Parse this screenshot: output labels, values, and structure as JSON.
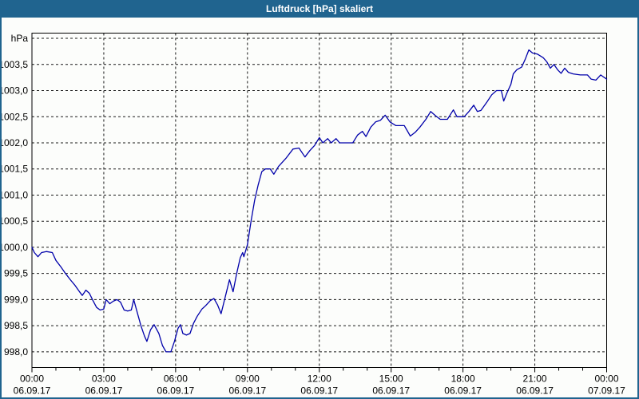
{
  "window": {
    "title": "Luftdruck [hPa] skaliert",
    "titlebar_color": "#20648f",
    "background_color": "#fcfdfb",
    "frame_color": "#20648f"
  },
  "chart_data": {
    "type": "line",
    "title": "Luftdruck [hPa] skaliert",
    "ylabel": "hPa",
    "xlabel": "",
    "line_color": "#0000aa",
    "grid_color": "#1a1a1a",
    "text_color": "#000000",
    "legend": "none",
    "grid": "dashed",
    "xlim_hours": [
      0,
      24
    ],
    "ylim": [
      997.7,
      1004.1
    ],
    "x_major_ticks": [
      {
        "hour": 0,
        "time": "00:00",
        "date": "06.09.17"
      },
      {
        "hour": 3,
        "time": "03:00",
        "date": "06.09.17"
      },
      {
        "hour": 6,
        "time": "06:00",
        "date": "06.09.17"
      },
      {
        "hour": 9,
        "time": "09:00",
        "date": "06.09.17"
      },
      {
        "hour": 12,
        "time": "12:00",
        "date": "06.09.17"
      },
      {
        "hour": 15,
        "time": "15:00",
        "date": "06.09.17"
      },
      {
        "hour": 18,
        "time": "18:00",
        "date": "06.09.17"
      },
      {
        "hour": 21,
        "time": "21:00",
        "date": "06.09.17"
      },
      {
        "hour": 24,
        "time": "00:00",
        "date": "07.09.17"
      }
    ],
    "x_minor_every_hours": 1,
    "y_ticks": [
      {
        "value": 1004.0,
        "label": "hPa"
      },
      {
        "value": 1003.5,
        "label": "1003,5"
      },
      {
        "value": 1003.0,
        "label": "1003,0"
      },
      {
        "value": 1002.5,
        "label": "1002,5"
      },
      {
        "value": 1002.0,
        "label": "1002,0"
      },
      {
        "value": 1001.5,
        "label": "1001,5"
      },
      {
        "value": 1001.0,
        "label": "1001,0"
      },
      {
        "value": 1000.5,
        "label": "1000,5"
      },
      {
        "value": 1000.0,
        "label": "1000,0"
      },
      {
        "value": 999.5,
        "label": "999,5"
      },
      {
        "value": 999.0,
        "label": "999,0"
      },
      {
        "value": 998.5,
        "label": "998,5"
      },
      {
        "value": 998.0,
        "label": "998,0"
      }
    ],
    "series": [
      {
        "name": "Luftdruck",
        "points": [
          [
            0.0,
            1000.0
          ],
          [
            0.1,
            999.9
          ],
          [
            0.25,
            999.82
          ],
          [
            0.4,
            999.9
          ],
          [
            0.6,
            999.92
          ],
          [
            0.85,
            999.9
          ],
          [
            1.0,
            999.75
          ],
          [
            1.2,
            999.63
          ],
          [
            1.4,
            999.5
          ],
          [
            1.6,
            999.38
          ],
          [
            1.8,
            999.27
          ],
          [
            2.0,
            999.14
          ],
          [
            2.1,
            999.08
          ],
          [
            2.25,
            999.18
          ],
          [
            2.4,
            999.12
          ],
          [
            2.55,
            998.98
          ],
          [
            2.7,
            998.85
          ],
          [
            2.85,
            998.8
          ],
          [
            3.0,
            998.82
          ],
          [
            3.1,
            999.0
          ],
          [
            3.25,
            998.92
          ],
          [
            3.4,
            998.97
          ],
          [
            3.55,
            999.0
          ],
          [
            3.7,
            998.95
          ],
          [
            3.85,
            998.8
          ],
          [
            4.0,
            998.78
          ],
          [
            4.15,
            998.8
          ],
          [
            4.25,
            999.0
          ],
          [
            4.4,
            998.75
          ],
          [
            4.55,
            998.5
          ],
          [
            4.7,
            998.3
          ],
          [
            4.8,
            998.2
          ],
          [
            4.95,
            998.42
          ],
          [
            5.1,
            998.52
          ],
          [
            5.3,
            998.35
          ],
          [
            5.45,
            998.12
          ],
          [
            5.6,
            998.0
          ],
          [
            5.8,
            998.0
          ],
          [
            5.95,
            998.2
          ],
          [
            6.1,
            998.45
          ],
          [
            6.2,
            998.52
          ],
          [
            6.3,
            998.35
          ],
          [
            6.45,
            998.32
          ],
          [
            6.6,
            998.35
          ],
          [
            6.75,
            998.55
          ],
          [
            6.9,
            998.68
          ],
          [
            7.1,
            998.82
          ],
          [
            7.25,
            998.88
          ],
          [
            7.45,
            998.98
          ],
          [
            7.6,
            999.02
          ],
          [
            7.75,
            998.9
          ],
          [
            7.9,
            998.73
          ],
          [
            8.1,
            999.1
          ],
          [
            8.25,
            999.38
          ],
          [
            8.4,
            999.15
          ],
          [
            8.55,
            999.5
          ],
          [
            8.7,
            999.8
          ],
          [
            8.8,
            999.9
          ],
          [
            8.85,
            999.82
          ],
          [
            9.0,
            1000.05
          ],
          [
            9.15,
            1000.5
          ],
          [
            9.3,
            1000.9
          ],
          [
            9.45,
            1001.2
          ],
          [
            9.6,
            1001.45
          ],
          [
            9.75,
            1001.5
          ],
          [
            9.95,
            1001.5
          ],
          [
            10.1,
            1001.4
          ],
          [
            10.3,
            1001.55
          ],
          [
            10.6,
            1001.7
          ],
          [
            10.9,
            1001.88
          ],
          [
            11.15,
            1001.9
          ],
          [
            11.4,
            1001.73
          ],
          [
            11.6,
            1001.85
          ],
          [
            11.8,
            1001.95
          ],
          [
            12.0,
            1002.1
          ],
          [
            12.15,
            1002.0
          ],
          [
            12.35,
            1002.08
          ],
          [
            12.5,
            1002.0
          ],
          [
            12.7,
            1002.08
          ],
          [
            12.85,
            1002.0
          ],
          [
            13.1,
            1002.0
          ],
          [
            13.4,
            1002.0
          ],
          [
            13.6,
            1002.15
          ],
          [
            13.8,
            1002.22
          ],
          [
            13.95,
            1002.12
          ],
          [
            14.15,
            1002.3
          ],
          [
            14.35,
            1002.4
          ],
          [
            14.55,
            1002.43
          ],
          [
            14.75,
            1002.53
          ],
          [
            14.95,
            1002.4
          ],
          [
            15.2,
            1002.33
          ],
          [
            15.55,
            1002.33
          ],
          [
            15.8,
            1002.13
          ],
          [
            16.0,
            1002.2
          ],
          [
            16.2,
            1002.3
          ],
          [
            16.45,
            1002.45
          ],
          [
            16.65,
            1002.6
          ],
          [
            16.85,
            1002.52
          ],
          [
            17.05,
            1002.45
          ],
          [
            17.35,
            1002.45
          ],
          [
            17.6,
            1002.63
          ],
          [
            17.75,
            1002.5
          ],
          [
            18.05,
            1002.5
          ],
          [
            18.25,
            1002.6
          ],
          [
            18.45,
            1002.72
          ],
          [
            18.6,
            1002.6
          ],
          [
            18.75,
            1002.62
          ],
          [
            19.0,
            1002.78
          ],
          [
            19.2,
            1002.92
          ],
          [
            19.4,
            1003.0
          ],
          [
            19.6,
            1003.0
          ],
          [
            19.7,
            1002.8
          ],
          [
            19.85,
            1002.97
          ],
          [
            20.0,
            1003.12
          ],
          [
            20.1,
            1003.32
          ],
          [
            20.25,
            1003.4
          ],
          [
            20.45,
            1003.45
          ],
          [
            20.6,
            1003.6
          ],
          [
            20.75,
            1003.78
          ],
          [
            20.9,
            1003.72
          ],
          [
            21.1,
            1003.7
          ],
          [
            21.35,
            1003.63
          ],
          [
            21.5,
            1003.55
          ],
          [
            21.65,
            1003.43
          ],
          [
            21.8,
            1003.5
          ],
          [
            21.95,
            1003.4
          ],
          [
            22.1,
            1003.33
          ],
          [
            22.25,
            1003.43
          ],
          [
            22.4,
            1003.35
          ],
          [
            22.6,
            1003.32
          ],
          [
            22.9,
            1003.3
          ],
          [
            23.2,
            1003.3
          ],
          [
            23.35,
            1003.22
          ],
          [
            23.55,
            1003.2
          ],
          [
            23.75,
            1003.3
          ],
          [
            23.9,
            1003.25
          ],
          [
            24.0,
            1003.22
          ]
        ]
      }
    ]
  }
}
